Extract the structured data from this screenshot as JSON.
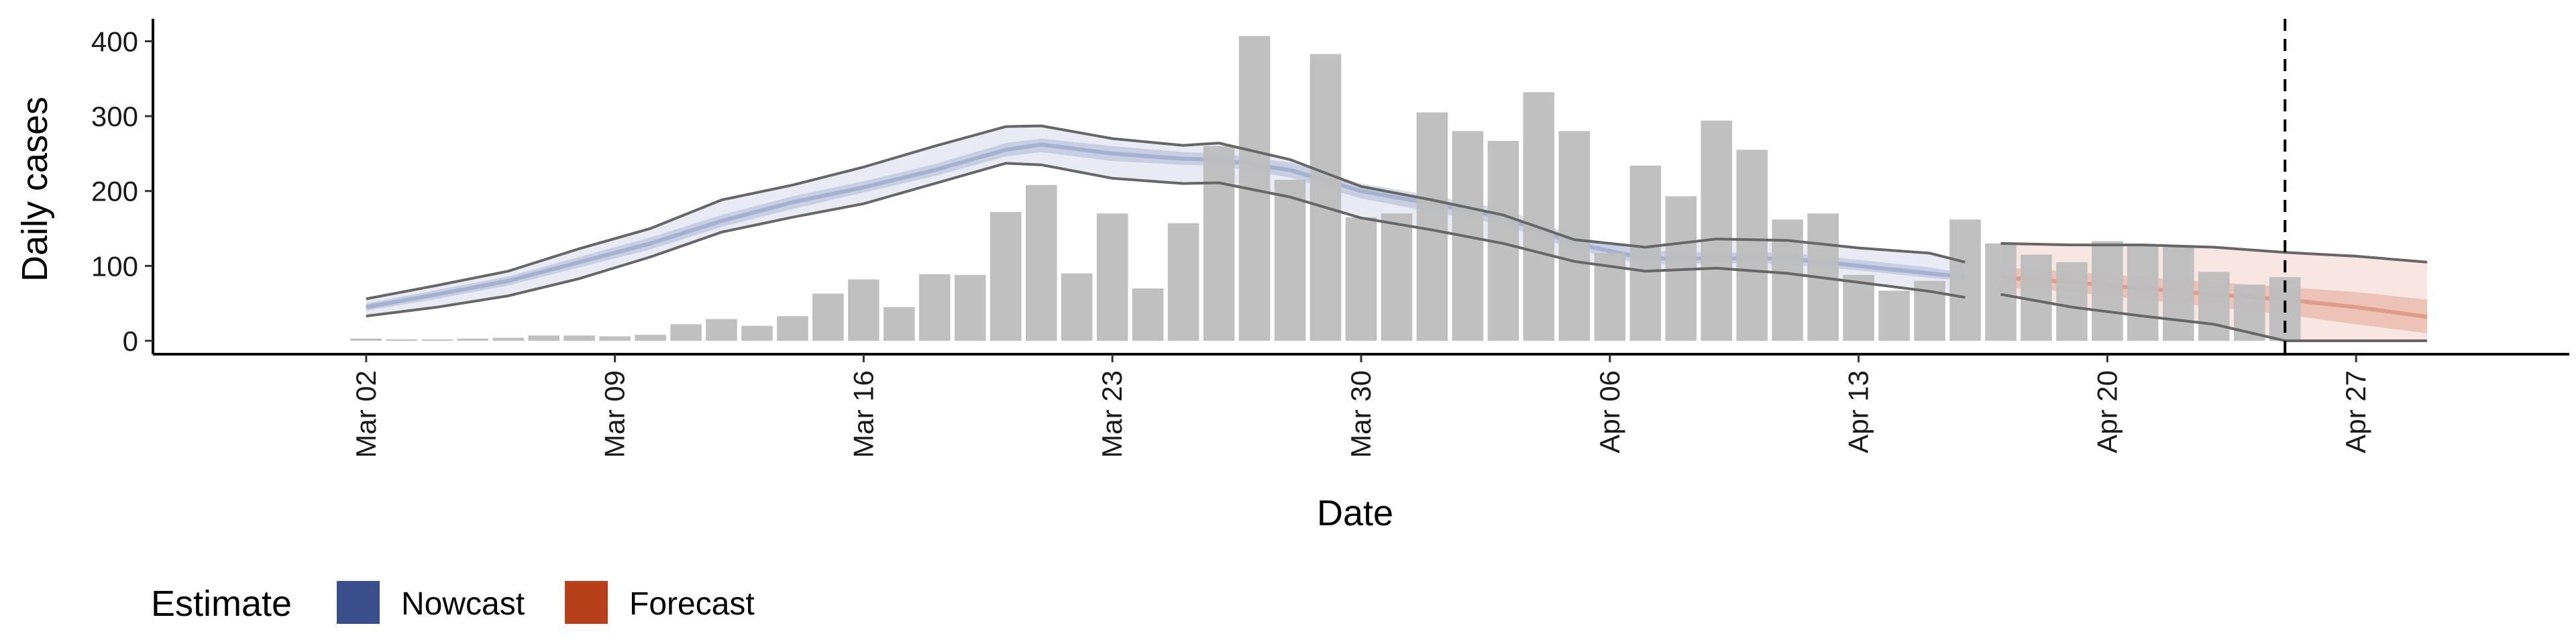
{
  "chart_data": {
    "type": "bar",
    "xlabel": "Date",
    "ylabel": "Daily cases",
    "ylim": [
      0,
      430
    ],
    "y_ticks": [
      0,
      100,
      200,
      300,
      400
    ],
    "x_ticks": [
      "2020-03-02",
      "2020-03-09",
      "2020-03-16",
      "2020-03-23",
      "2020-03-30",
      "2020-04-06",
      "2020-04-13",
      "2020-04-20",
      "2020-04-27"
    ],
    "x_tick_labels": [
      "Mar 02",
      "Mar 09",
      "Mar 16",
      "Mar 23",
      "Mar 30",
      "Apr 06",
      "Apr 13",
      "Apr 20",
      "Apr 27"
    ],
    "x_range": [
      "2020-02-25",
      "2020-05-03"
    ],
    "forecast_date": "2020-04-25",
    "grid": false,
    "legend": {
      "title": "Estimate",
      "placement": "bottom-left",
      "entries": [
        {
          "label": "Nowcast",
          "color": "#3b4f8c"
        },
        {
          "label": "Forecast",
          "color": "#b5401a"
        }
      ]
    },
    "colors": {
      "bars": "#bdbdbd",
      "nowcast": "#8c9cc4",
      "forecast": "#d9826a",
      "ci_line": "#666666"
    },
    "observed": {
      "dates": [
        "2020-03-02",
        "2020-03-03",
        "2020-03-04",
        "2020-03-05",
        "2020-03-06",
        "2020-03-07",
        "2020-03-08",
        "2020-03-09",
        "2020-03-10",
        "2020-03-11",
        "2020-03-12",
        "2020-03-13",
        "2020-03-14",
        "2020-03-15",
        "2020-03-16",
        "2020-03-17",
        "2020-03-18",
        "2020-03-19",
        "2020-03-20",
        "2020-03-21",
        "2020-03-22",
        "2020-03-23",
        "2020-03-24",
        "2020-03-25",
        "2020-03-26",
        "2020-03-27",
        "2020-03-28",
        "2020-03-29",
        "2020-03-30",
        "2020-03-31",
        "2020-04-01",
        "2020-04-02",
        "2020-04-03",
        "2020-04-04",
        "2020-04-05",
        "2020-04-06",
        "2020-04-07",
        "2020-04-08",
        "2020-04-09",
        "2020-04-10",
        "2020-04-11",
        "2020-04-12",
        "2020-04-13",
        "2020-04-14",
        "2020-04-15",
        "2020-04-16",
        "2020-04-17",
        "2020-04-18",
        "2020-04-19",
        "2020-04-20",
        "2020-04-21",
        "2020-04-22",
        "2020-04-23",
        "2020-04-24",
        "2020-04-25"
      ],
      "values": [
        3,
        2,
        0,
        3,
        4,
        7,
        7,
        6,
        8,
        22,
        29,
        20,
        33,
        63,
        82,
        45,
        89,
        88,
        172,
        208,
        90,
        170,
        70,
        157,
        260,
        407,
        215,
        383,
        165,
        170,
        305,
        280,
        267,
        332,
        280,
        117,
        234,
        193,
        294,
        255,
        162,
        170,
        88,
        67,
        80,
        162,
        130,
        115,
        105,
        133,
        128,
        125,
        92,
        75,
        85
      ]
    },
    "series": [
      {
        "name": "Nowcast",
        "dates": [
          "2020-03-02",
          "2020-03-04",
          "2020-03-06",
          "2020-03-08",
          "2020-03-10",
          "2020-03-12",
          "2020-03-14",
          "2020-03-16",
          "2020-03-18",
          "2020-03-20",
          "2020-03-21",
          "2020-03-23",
          "2020-03-25",
          "2020-03-26",
          "2020-03-28",
          "2020-03-30",
          "2020-04-01",
          "2020-04-03",
          "2020-04-05",
          "2020-04-07",
          "2020-04-09",
          "2020-04-11",
          "2020-04-13",
          "2020-04-15",
          "2020-04-16"
        ],
        "median": [
          45,
          62,
          80,
          105,
          130,
          160,
          185,
          205,
          228,
          255,
          262,
          250,
          243,
          242,
          228,
          200,
          183,
          165,
          130,
          110,
          110,
          110,
          100,
          90,
          85
        ],
        "inner_lower": [
          40,
          56,
          74,
          98,
          122,
          152,
          176,
          198,
          220,
          246,
          252,
          240,
          235,
          234,
          218,
          190,
          172,
          155,
          122,
          102,
          104,
          102,
          94,
          84,
          80
        ],
        "inner_upper": [
          50,
          68,
          86,
          112,
          138,
          168,
          193,
          213,
          236,
          264,
          270,
          260,
          252,
          250,
          238,
          210,
          194,
          176,
          140,
          120,
          118,
          118,
          108,
          98,
          90
        ],
        "outer_lower": [
          33,
          45,
          60,
          83,
          112,
          145,
          165,
          183,
          210,
          237,
          235,
          217,
          210,
          211,
          192,
          164,
          148,
          130,
          106,
          93,
          97,
          90,
          78,
          66,
          58
        ],
        "outer_upper": [
          56,
          74,
          93,
          123,
          150,
          188,
          208,
          232,
          260,
          286,
          287,
          270,
          261,
          264,
          242,
          206,
          188,
          168,
          135,
          125,
          136,
          134,
          124,
          117,
          105
        ]
      },
      {
        "name": "Forecast",
        "dates": [
          "2020-04-17",
          "2020-04-19",
          "2020-04-21",
          "2020-04-23",
          "2020-04-25",
          "2020-04-27",
          "2020-04-29"
        ],
        "median": [
          85,
          78,
          70,
          62,
          55,
          45,
          32
        ],
        "inner_lower": [
          72,
          65,
          55,
          45,
          35,
          22,
          10
        ],
        "inner_upper": [
          98,
          92,
          85,
          78,
          72,
          65,
          55
        ],
        "outer_lower": [
          62,
          45,
          33,
          22,
          0,
          0,
          0
        ],
        "outer_upper": [
          130,
          128,
          128,
          125,
          118,
          113,
          105
        ]
      }
    ]
  }
}
